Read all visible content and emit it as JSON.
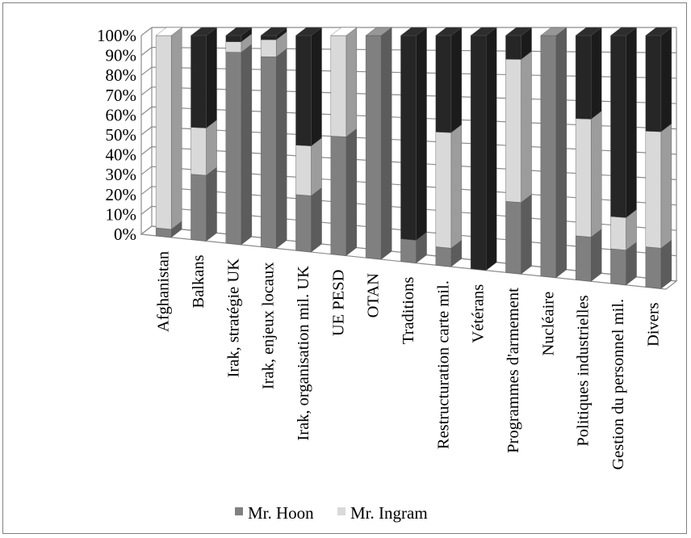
{
  "chart_data": {
    "type": "bar",
    "stacked": true,
    "three_d": true,
    "categories": [
      "Afghanistan",
      "Balkans",
      "Irak, stratégie UK",
      "Irak, enjeux locaux",
      "Irak, organisation mil. UK",
      "UE PESD",
      "OTAN",
      "Traditions",
      "Restructuration carte mil.",
      "Vétérans",
      "Programmes d'armement",
      "Nucléaire",
      "Politiques industrielles",
      "Gestion du personnel mil.",
      "Divers"
    ],
    "series": [
      {
        "name": "Mr. Hoon",
        "color": "#808080",
        "values": [
          4,
          32,
          92,
          90,
          26,
          54,
          100,
          10,
          8,
          0,
          30,
          100,
          18,
          14,
          16
        ]
      },
      {
        "name": "Mr. Ingram",
        "color": "#d9d9d9",
        "values": [
          96,
          23,
          5,
          8,
          23,
          46,
          0,
          0,
          50,
          0,
          60,
          0,
          48,
          13,
          46
        ]
      },
      {
        "name": "",
        "color": "#262626",
        "values": [
          0,
          45,
          3,
          2,
          51,
          0,
          0,
          90,
          42,
          100,
          10,
          0,
          34,
          73,
          38
        ]
      }
    ],
    "y_ticks": [
      "0%",
      "10%",
      "20%",
      "30%",
      "40%",
      "50%",
      "60%",
      "70%",
      "80%",
      "90%",
      "100%"
    ],
    "ylim": [
      0,
      100
    ],
    "grid": true,
    "legend_position": "bottom"
  }
}
